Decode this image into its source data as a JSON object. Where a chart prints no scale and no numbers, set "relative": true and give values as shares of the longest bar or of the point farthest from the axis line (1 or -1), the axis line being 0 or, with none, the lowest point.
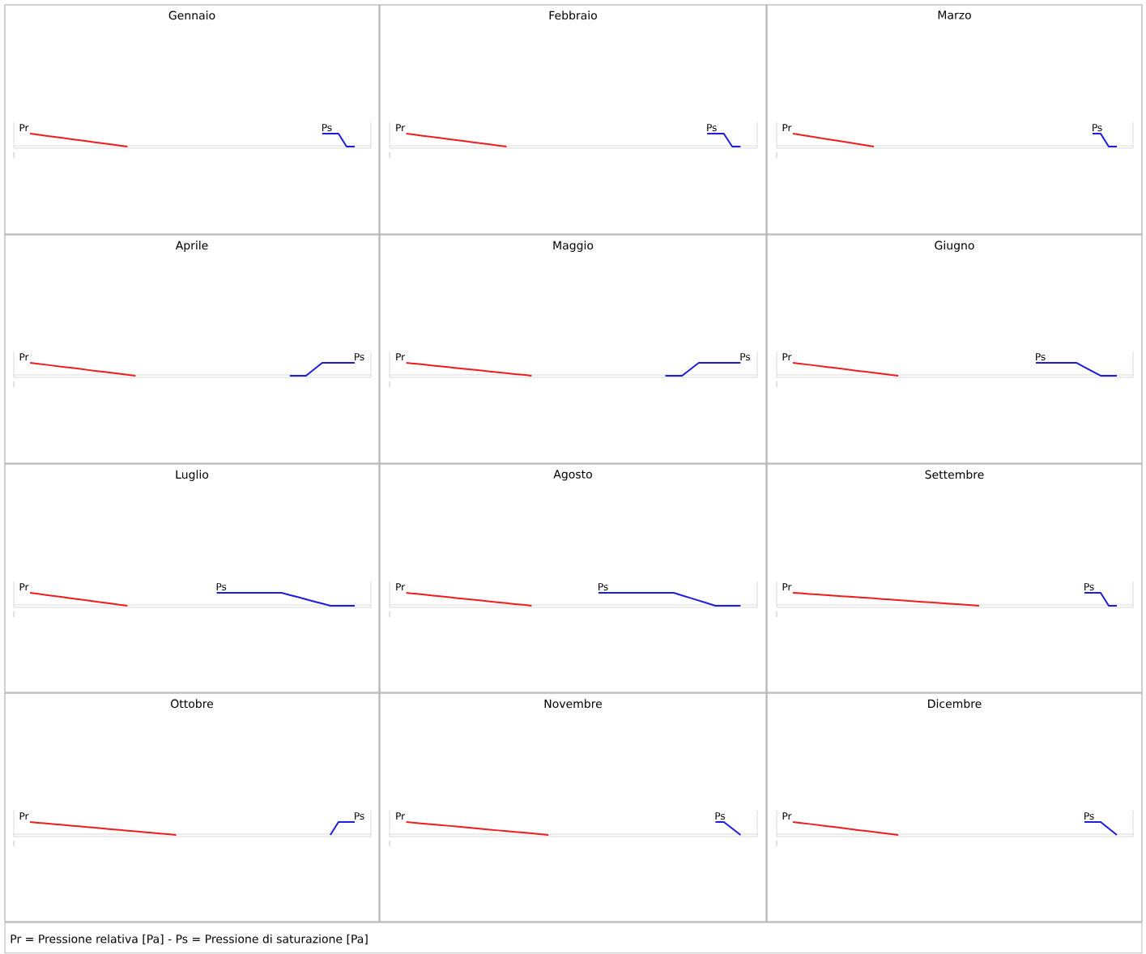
{
  "chart_data": [
    {
      "type": "line",
      "title": "Gennaio",
      "relative": true,
      "annotations": [
        "Pr = Pressione relativa [Pa] - Ps = Pressione di saturazione [Pa]"
      ],
      "categories": [
        null,
        null,
        null,
        null,
        null,
        null,
        null,
        null,
        null,
        null,
        null,
        null,
        null,
        null,
        null,
        null,
        null,
        null,
        null,
        null,
        null,
        null,
        null,
        null,
        null,
        null,
        null,
        null,
        null,
        null,
        null,
        null,
        null,
        null,
        null,
        null,
        null,
        null,
        null,
        null,
        null,
        null,
        null,
        null,
        null
      ],
      "series": [
        {
          "name": "Pr",
          "color": "#ee1c1c",
          "values": [
            null,
            null,
            1,
            0.92,
            0.83,
            0.75,
            0.67,
            0.58,
            0.5,
            0.42,
            0.33,
            0.25,
            0.17,
            0.08,
            0,
            null,
            null,
            null,
            null,
            null,
            null,
            null,
            null,
            null,
            null,
            null,
            null,
            null,
            null,
            null,
            null,
            null,
            null,
            null,
            null,
            null,
            null,
            null,
            null,
            null,
            null,
            null,
            null,
            null,
            null
          ]
        },
        {
          "name": "Ps",
          "color": "#1c1cdd",
          "values": [
            null,
            null,
            null,
            null,
            null,
            null,
            null,
            null,
            null,
            null,
            null,
            null,
            null,
            null,
            null,
            null,
            null,
            null,
            null,
            null,
            null,
            null,
            null,
            null,
            null,
            null,
            null,
            null,
            null,
            null,
            null,
            null,
            null,
            null,
            null,
            null,
            null,
            null,
            1,
            1,
            1,
            0,
            0,
            null,
            null
          ]
        }
      ]
    },
    {
      "type": "line",
      "title": "Febbraio",
      "relative": true,
      "categories": [
        null,
        null,
        null,
        null,
        null,
        null,
        null,
        null,
        null,
        null,
        null,
        null,
        null,
        null,
        null,
        null,
        null,
        null,
        null,
        null,
        null,
        null,
        null,
        null,
        null,
        null,
        null,
        null,
        null,
        null,
        null,
        null,
        null,
        null,
        null,
        null,
        null,
        null,
        null,
        null,
        null,
        null,
        null,
        null,
        null
      ],
      "series": [
        {
          "name": "Pr",
          "color": "#ee1c1c",
          "values": [
            null,
            null,
            1,
            0.92,
            0.83,
            0.75,
            0.67,
            0.58,
            0.5,
            0.42,
            0.33,
            0.25,
            0.17,
            0.08,
            0,
            null,
            null,
            null,
            null,
            null,
            null,
            null,
            null,
            null,
            null,
            null,
            null,
            null,
            null,
            null,
            null,
            null,
            null,
            null,
            null,
            null,
            null,
            null,
            null,
            null,
            null,
            null,
            null,
            null,
            null
          ]
        },
        {
          "name": "Ps",
          "color": "#1c1cdd",
          "values": [
            null,
            null,
            null,
            null,
            null,
            null,
            null,
            null,
            null,
            null,
            null,
            null,
            null,
            null,
            null,
            null,
            null,
            null,
            null,
            null,
            null,
            null,
            null,
            null,
            null,
            null,
            null,
            null,
            null,
            null,
            null,
            null,
            null,
            null,
            null,
            null,
            null,
            null,
            1,
            1,
            1,
            0,
            0,
            null,
            null
          ]
        }
      ]
    },
    {
      "type": "line",
      "title": "Marzo",
      "relative": true,
      "categories": [
        null,
        null,
        null,
        null,
        null,
        null,
        null,
        null,
        null,
        null,
        null,
        null,
        null,
        null,
        null,
        null,
        null,
        null,
        null,
        null,
        null,
        null,
        null,
        null,
        null,
        null,
        null,
        null,
        null,
        null,
        null,
        null,
        null,
        null,
        null,
        null,
        null,
        null,
        null,
        null,
        null,
        null,
        null,
        null,
        null
      ],
      "series": [
        {
          "name": "Pr",
          "color": "#ee1c1c",
          "values": [
            null,
            null,
            1,
            0.9,
            0.8,
            0.7,
            0.6,
            0.5,
            0.4,
            0.3,
            0.2,
            0.1,
            0,
            null,
            null,
            null,
            null,
            null,
            null,
            null,
            null,
            null,
            null,
            null,
            null,
            null,
            null,
            null,
            null,
            null,
            null,
            null,
            null,
            null,
            null,
            null,
            null,
            null,
            null,
            null,
            null,
            null,
            null,
            null,
            null
          ]
        },
        {
          "name": "Ps",
          "color": "#1c1cdd",
          "values": [
            null,
            null,
            null,
            null,
            null,
            null,
            null,
            null,
            null,
            null,
            null,
            null,
            null,
            null,
            null,
            null,
            null,
            null,
            null,
            null,
            null,
            null,
            null,
            null,
            null,
            null,
            null,
            null,
            null,
            null,
            null,
            null,
            null,
            null,
            null,
            null,
            null,
            null,
            null,
            1,
            1,
            0,
            0,
            null,
            null
          ]
        }
      ]
    },
    {
      "type": "line",
      "title": "Aprile",
      "relative": true,
      "categories": [
        null,
        null,
        null,
        null,
        null,
        null,
        null,
        null,
        null,
        null,
        null,
        null,
        null,
        null,
        null,
        null,
        null,
        null,
        null,
        null,
        null,
        null,
        null,
        null,
        null,
        null,
        null,
        null,
        null,
        null,
        null,
        null,
        null,
        null,
        null,
        null,
        null,
        null,
        null,
        null,
        null,
        null,
        null,
        null,
        null
      ],
      "series": [
        {
          "name": "Pr",
          "color": "#ee1c1c",
          "values": [
            null,
            null,
            1,
            0.92,
            0.85,
            0.77,
            0.69,
            0.62,
            0.54,
            0.46,
            0.38,
            0.31,
            0.23,
            0.15,
            0.08,
            0,
            null,
            null,
            null,
            null,
            null,
            null,
            null,
            null,
            null,
            null,
            null,
            null,
            null,
            null,
            null,
            null,
            null,
            null,
            null,
            null,
            null,
            null,
            null,
            null,
            null,
            null,
            null,
            null,
            null
          ]
        },
        {
          "name": "Ps",
          "color": "#1c1cdd",
          "values": [
            null,
            null,
            null,
            null,
            null,
            null,
            null,
            null,
            null,
            null,
            null,
            null,
            null,
            null,
            null,
            null,
            null,
            null,
            null,
            null,
            null,
            null,
            null,
            null,
            null,
            null,
            null,
            null,
            null,
            null,
            null,
            null,
            null,
            null,
            0,
            0,
            0,
            0.5,
            1,
            1,
            1,
            1,
            1,
            null,
            null
          ]
        }
      ]
    },
    {
      "type": "line",
      "title": "Maggio",
      "relative": true,
      "categories": [
        null,
        null,
        null,
        null,
        null,
        null,
        null,
        null,
        null,
        null,
        null,
        null,
        null,
        null,
        null,
        null,
        null,
        null,
        null,
        null,
        null,
        null,
        null,
        null,
        null,
        null,
        null,
        null,
        null,
        null,
        null,
        null,
        null,
        null,
        null,
        null,
        null,
        null,
        null,
        null,
        null,
        null,
        null,
        null,
        null
      ],
      "series": [
        {
          "name": "Pr",
          "color": "#ee1c1c",
          "values": [
            null,
            null,
            1,
            0.93,
            0.87,
            0.8,
            0.73,
            0.67,
            0.6,
            0.53,
            0.47,
            0.4,
            0.33,
            0.27,
            0.2,
            0.13,
            0.07,
            0,
            null,
            null,
            null,
            null,
            null,
            null,
            null,
            null,
            null,
            null,
            null,
            null,
            null,
            null,
            null,
            null,
            null,
            null,
            null,
            null,
            null,
            null,
            null,
            null,
            null,
            null,
            null
          ]
        },
        {
          "name": "Ps",
          "color": "#1c1cdd",
          "values": [
            null,
            null,
            null,
            null,
            null,
            null,
            null,
            null,
            null,
            null,
            null,
            null,
            null,
            null,
            null,
            null,
            null,
            null,
            null,
            null,
            null,
            null,
            null,
            null,
            null,
            null,
            null,
            null,
            null,
            null,
            null,
            null,
            null,
            0,
            0,
            0,
            0.5,
            1,
            1,
            1,
            1,
            1,
            1,
            null,
            null
          ]
        }
      ]
    },
    {
      "type": "line",
      "title": "Giugno",
      "relative": true,
      "categories": [
        null,
        null,
        null,
        null,
        null,
        null,
        null,
        null,
        null,
        null,
        null,
        null,
        null,
        null,
        null,
        null,
        null,
        null,
        null,
        null,
        null,
        null,
        null,
        null,
        null,
        null,
        null,
        null,
        null,
        null,
        null,
        null,
        null,
        null,
        null,
        null,
        null,
        null,
        null,
        null,
        null,
        null,
        null,
        null,
        null
      ],
      "series": [
        {
          "name": "Pr",
          "color": "#ee1c1c",
          "values": [
            null,
            null,
            1,
            0.92,
            0.85,
            0.77,
            0.69,
            0.62,
            0.54,
            0.46,
            0.38,
            0.31,
            0.23,
            0.15,
            0.08,
            0,
            null,
            null,
            null,
            null,
            null,
            null,
            null,
            null,
            null,
            null,
            null,
            null,
            null,
            null,
            null,
            null,
            null,
            null,
            null,
            null,
            null,
            null,
            null,
            null,
            null,
            null,
            null,
            null,
            null
          ]
        },
        {
          "name": "Ps",
          "color": "#1c1cdd",
          "values": [
            null,
            null,
            null,
            null,
            null,
            null,
            null,
            null,
            null,
            null,
            null,
            null,
            null,
            null,
            null,
            null,
            null,
            null,
            null,
            null,
            null,
            null,
            null,
            null,
            null,
            null,
            null,
            null,
            null,
            null,
            null,
            null,
            1,
            1,
            1,
            1,
            1,
            1,
            0.67,
            0.33,
            0,
            0,
            0,
            null,
            null
          ]
        }
      ]
    },
    {
      "type": "line",
      "title": "Luglio",
      "relative": true,
      "categories": [
        null,
        null,
        null,
        null,
        null,
        null,
        null,
        null,
        null,
        null,
        null,
        null,
        null,
        null,
        null,
        null,
        null,
        null,
        null,
        null,
        null,
        null,
        null,
        null,
        null,
        null,
        null,
        null,
        null,
        null,
        null,
        null,
        null,
        null,
        null,
        null,
        null,
        null,
        null,
        null,
        null,
        null,
        null,
        null,
        null
      ],
      "series": [
        {
          "name": "Pr",
          "color": "#ee1c1c",
          "values": [
            null,
            null,
            1,
            0.92,
            0.83,
            0.75,
            0.67,
            0.58,
            0.5,
            0.42,
            0.33,
            0.25,
            0.17,
            0.08,
            0,
            null,
            null,
            null,
            null,
            null,
            null,
            null,
            null,
            null,
            null,
            null,
            null,
            null,
            null,
            null,
            null,
            null,
            null,
            null,
            null,
            null,
            null,
            null,
            null,
            null,
            null,
            null,
            null,
            null,
            null
          ]
        },
        {
          "name": "Ps",
          "color": "#1c1cdd",
          "values": [
            null,
            null,
            null,
            null,
            null,
            null,
            null,
            null,
            null,
            null,
            null,
            null,
            null,
            null,
            null,
            null,
            null,
            null,
            null,
            null,
            null,
            null,
            null,
            null,
            null,
            1,
            1,
            1,
            1,
            1,
            1,
            1,
            1,
            1,
            0.83,
            0.67,
            0.5,
            0.33,
            0.17,
            0,
            0,
            0,
            0,
            null,
            null
          ]
        }
      ]
    },
    {
      "type": "line",
      "title": "Agosto",
      "relative": true,
      "categories": [
        null,
        null,
        null,
        null,
        null,
        null,
        null,
        null,
        null,
        null,
        null,
        null,
        null,
        null,
        null,
        null,
        null,
        null,
        null,
        null,
        null,
        null,
        null,
        null,
        null,
        null,
        null,
        null,
        null,
        null,
        null,
        null,
        null,
        null,
        null,
        null,
        null,
        null,
        null,
        null,
        null,
        null,
        null,
        null,
        null
      ],
      "series": [
        {
          "name": "Pr",
          "color": "#ee1c1c",
          "values": [
            null,
            null,
            1,
            0.93,
            0.87,
            0.8,
            0.73,
            0.67,
            0.6,
            0.53,
            0.47,
            0.4,
            0.33,
            0.27,
            0.2,
            0.13,
            0.07,
            0,
            null,
            null,
            null,
            null,
            null,
            null,
            null,
            null,
            null,
            null,
            null,
            null,
            null,
            null,
            null,
            null,
            null,
            null,
            null,
            null,
            null,
            null,
            null,
            null,
            null,
            null,
            null
          ]
        },
        {
          "name": "Ps",
          "color": "#1c1cdd",
          "values": [
            null,
            null,
            null,
            null,
            null,
            null,
            null,
            null,
            null,
            null,
            null,
            null,
            null,
            null,
            null,
            null,
            null,
            null,
            null,
            null,
            null,
            null,
            null,
            null,
            null,
            1,
            1,
            1,
            1,
            1,
            1,
            1,
            1,
            1,
            1,
            0.8,
            0.6,
            0.4,
            0.2,
            0,
            0,
            0,
            0,
            null,
            null
          ]
        }
      ]
    },
    {
      "type": "line",
      "title": "Settembre",
      "relative": true,
      "categories": [
        null,
        null,
        null,
        null,
        null,
        null,
        null,
        null,
        null,
        null,
        null,
        null,
        null,
        null,
        null,
        null,
        null,
        null,
        null,
        null,
        null,
        null,
        null,
        null,
        null,
        null,
        null,
        null,
        null,
        null,
        null,
        null,
        null,
        null,
        null,
        null,
        null,
        null,
        null,
        null,
        null,
        null,
        null,
        null,
        null
      ],
      "series": [
        {
          "name": "Pr",
          "color": "#ee1c1c",
          "values": [
            null,
            null,
            1,
            0.96,
            0.91,
            0.87,
            0.83,
            0.78,
            0.74,
            0.7,
            0.65,
            0.61,
            0.57,
            0.52,
            0.48,
            0.43,
            0.39,
            0.35,
            0.3,
            0.26,
            0.22,
            0.17,
            0.13,
            0.09,
            0.04,
            0,
            null,
            null,
            null,
            null,
            null,
            null,
            null,
            null,
            null,
            null,
            null,
            null,
            null,
            null,
            null,
            null,
            null,
            null,
            null
          ]
        },
        {
          "name": "Ps",
          "color": "#1c1cdd",
          "values": [
            null,
            null,
            null,
            null,
            null,
            null,
            null,
            null,
            null,
            null,
            null,
            null,
            null,
            null,
            null,
            null,
            null,
            null,
            null,
            null,
            null,
            null,
            null,
            null,
            null,
            null,
            null,
            null,
            null,
            null,
            null,
            null,
            null,
            null,
            null,
            null,
            null,
            null,
            1,
            1,
            1,
            0,
            0,
            null,
            null
          ]
        }
      ]
    },
    {
      "type": "line",
      "title": "Ottobre",
      "relative": true,
      "categories": [
        null,
        null,
        null,
        null,
        null,
        null,
        null,
        null,
        null,
        null,
        null,
        null,
        null,
        null,
        null,
        null,
        null,
        null,
        null,
        null,
        null,
        null,
        null,
        null,
        null,
        null,
        null,
        null,
        null,
        null,
        null,
        null,
        null,
        null,
        null,
        null,
        null,
        null,
        null,
        null,
        null,
        null,
        null,
        null,
        null
      ],
      "series": [
        {
          "name": "Pr",
          "color": "#ee1c1c",
          "values": [
            null,
            null,
            1,
            0.94,
            0.89,
            0.83,
            0.78,
            0.72,
            0.67,
            0.61,
            0.56,
            0.5,
            0.44,
            0.39,
            0.33,
            0.28,
            0.22,
            0.17,
            0.11,
            0.06,
            0,
            null,
            null,
            null,
            null,
            null,
            null,
            null,
            null,
            null,
            null,
            null,
            null,
            null,
            null,
            null,
            null,
            null,
            null,
            null,
            null,
            null,
            null,
            null,
            null
          ]
        },
        {
          "name": "Ps",
          "color": "#1c1cdd",
          "values": [
            null,
            null,
            null,
            null,
            null,
            null,
            null,
            null,
            null,
            null,
            null,
            null,
            null,
            null,
            null,
            null,
            null,
            null,
            null,
            null,
            null,
            null,
            null,
            null,
            null,
            null,
            null,
            null,
            null,
            null,
            null,
            null,
            null,
            null,
            null,
            null,
            null,
            null,
            null,
            0,
            1,
            1,
            1,
            null,
            null
          ]
        }
      ]
    },
    {
      "type": "line",
      "title": "Novembre",
      "relative": true,
      "categories": [
        null,
        null,
        null,
        null,
        null,
        null,
        null,
        null,
        null,
        null,
        null,
        null,
        null,
        null,
        null,
        null,
        null,
        null,
        null,
        null,
        null,
        null,
        null,
        null,
        null,
        null,
        null,
        null,
        null,
        null,
        null,
        null,
        null,
        null,
        null,
        null,
        null,
        null,
        null,
        null,
        null,
        null,
        null,
        null,
        null
      ],
      "series": [
        {
          "name": "Pr",
          "color": "#ee1c1c",
          "values": [
            null,
            null,
            1,
            0.94,
            0.88,
            0.82,
            0.76,
            0.71,
            0.65,
            0.59,
            0.53,
            0.47,
            0.41,
            0.35,
            0.29,
            0.24,
            0.18,
            0.12,
            0.06,
            0,
            null,
            null,
            null,
            null,
            null,
            null,
            null,
            null,
            null,
            null,
            null,
            null,
            null,
            null,
            null,
            null,
            null,
            null,
            null,
            null,
            null,
            null,
            null,
            null,
            null
          ]
        },
        {
          "name": "Ps",
          "color": "#1c1cdd",
          "values": [
            null,
            null,
            null,
            null,
            null,
            null,
            null,
            null,
            null,
            null,
            null,
            null,
            null,
            null,
            null,
            null,
            null,
            null,
            null,
            null,
            null,
            null,
            null,
            null,
            null,
            null,
            null,
            null,
            null,
            null,
            null,
            null,
            null,
            null,
            null,
            null,
            null,
            null,
            null,
            1,
            1,
            0.5,
            0,
            null,
            null
          ]
        }
      ]
    },
    {
      "type": "line",
      "title": "Dicembre",
      "relative": true,
      "categories": [
        null,
        null,
        null,
        null,
        null,
        null,
        null,
        null,
        null,
        null,
        null,
        null,
        null,
        null,
        null,
        null,
        null,
        null,
        null,
        null,
        null,
        null,
        null,
        null,
        null,
        null,
        null,
        null,
        null,
        null,
        null,
        null,
        null,
        null,
        null,
        null,
        null,
        null,
        null,
        null,
        null,
        null,
        null,
        null,
        null
      ],
      "series": [
        {
          "name": "Pr",
          "color": "#ee1c1c",
          "values": [
            null,
            null,
            1,
            0.92,
            0.85,
            0.77,
            0.69,
            0.62,
            0.54,
            0.46,
            0.38,
            0.31,
            0.23,
            0.15,
            0.08,
            0,
            null,
            null,
            null,
            null,
            null,
            null,
            null,
            null,
            null,
            null,
            null,
            null,
            null,
            null,
            null,
            null,
            null,
            null,
            null,
            null,
            null,
            null,
            null,
            null,
            null,
            null,
            null,
            null,
            null
          ]
        },
        {
          "name": "Ps",
          "color": "#1c1cdd",
          "values": [
            null,
            null,
            null,
            null,
            null,
            null,
            null,
            null,
            null,
            null,
            null,
            null,
            null,
            null,
            null,
            null,
            null,
            null,
            null,
            null,
            null,
            null,
            null,
            null,
            null,
            null,
            null,
            null,
            null,
            null,
            null,
            null,
            null,
            null,
            null,
            null,
            null,
            null,
            1,
            1,
            1,
            0.5,
            0,
            null,
            null
          ]
        }
      ]
    }
  ]
}
